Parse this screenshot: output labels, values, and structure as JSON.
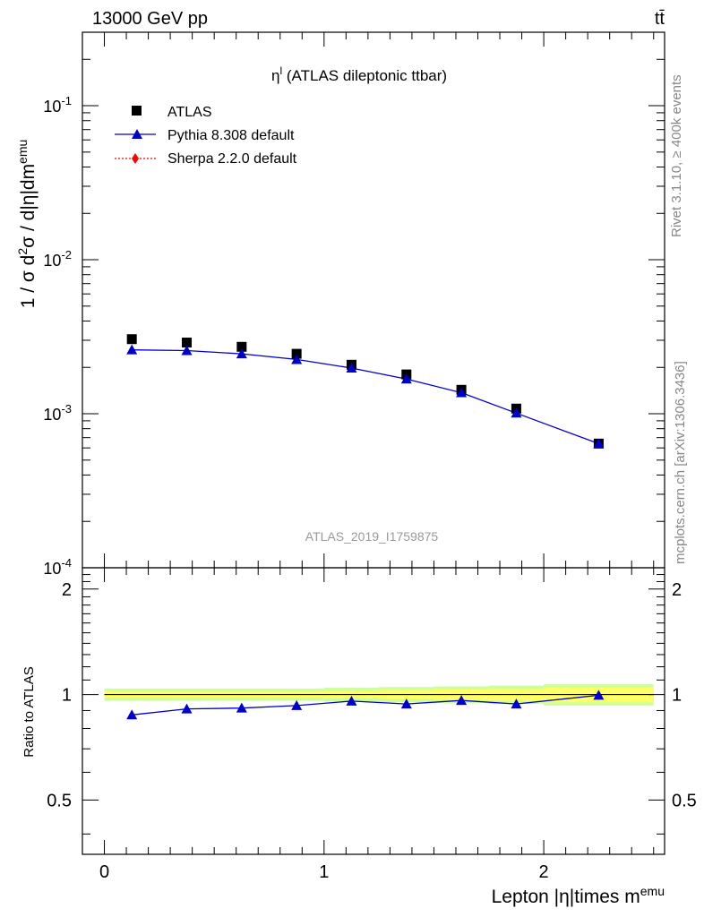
{
  "header": {
    "energy_label": "13000 GeV pp",
    "process_label": "tt̄"
  },
  "side_labels": {
    "rivet": "Rivet 3.1.10, ≥ 400k events",
    "mcplots": "mcplots.cern.ch [arXiv:1306.3436]"
  },
  "main_panel": {
    "title_prefix": "η",
    "title_sup": "l",
    "title_suffix": " (ATLAS dileptonic ttbar)",
    "watermark": "ATLAS_2019_I1759875",
    "ylabel": "1 / σ d²σ / d|η|dm^emu",
    "ytick_labels": [
      "10^-4",
      "10^-3",
      "10^-2",
      "10^-1"
    ]
  },
  "ratio_panel": {
    "ylabel": "Ratio to ATLAS",
    "ytick_labels": [
      "0.5",
      "1",
      "2"
    ],
    "xtick_labels": [
      "0",
      "1",
      "2"
    ],
    "xlabel": "Lepton |η|times m^emu"
  },
  "legend": {
    "position": "top-left",
    "entries": [
      {
        "label": "ATLAS",
        "marker": "square",
        "color": "#000000"
      },
      {
        "label": "Pythia 8.308 default",
        "marker": "triangle",
        "color": "#0000cc"
      },
      {
        "label": "Sherpa 2.2.0 default",
        "marker": "diamond",
        "color": "#ff0000"
      }
    ]
  },
  "colors": {
    "data": "#000000",
    "pythia": "#0000cc",
    "sherpa": "#ff0000",
    "band_inner": "#ffff66",
    "band_outer": "#ccff99",
    "watermark": "#999999",
    "side_text": "#888888"
  },
  "chart_data": [
    {
      "type": "scatter",
      "panel": "main",
      "x": [
        0.125,
        0.375,
        0.625,
        0.875,
        1.125,
        1.375,
        1.625,
        1.875,
        2.25
      ],
      "xlim": [
        -0.1,
        2.55
      ],
      "ylim": [
        0.0001,
        0.3
      ],
      "y_log_scale": true,
      "series": [
        {
          "name": "ATLAS",
          "values": [
            0.00305,
            0.0029,
            0.00272,
            0.00245,
            0.00208,
            0.0018,
            0.00143,
            0.00108,
            0.00064
          ]
        },
        {
          "name": "Pythia 8.308 default",
          "values": [
            0.0026,
            0.00257,
            0.00245,
            0.00225,
            0.00198,
            0.00168,
            0.00137,
            0.00101,
            0.00064
          ]
        }
      ]
    },
    {
      "type": "line",
      "panel": "ratio",
      "x": [
        0.125,
        0.375,
        0.625,
        0.875,
        1.125,
        1.375,
        1.625,
        1.875,
        2.25
      ],
      "xlim": [
        -0.1,
        2.55
      ],
      "ylim": [
        0.35,
        2.3
      ],
      "y_log_scale": true,
      "series": [
        {
          "name": "Pythia 8.308 default",
          "values": [
            0.875,
            0.91,
            0.915,
            0.93,
            0.958,
            0.94,
            0.962,
            0.94,
            0.995
          ]
        }
      ],
      "band_x_edges": [
        0.0,
        0.25,
        0.5,
        0.75,
        1.0,
        1.25,
        1.5,
        1.75,
        2.0,
        2.5
      ],
      "band_outer_halfwidth": [
        0.04,
        0.04,
        0.04,
        0.04,
        0.045,
        0.05,
        0.055,
        0.06,
        0.07
      ],
      "band_inner_halfwidth": [
        0.02,
        0.02,
        0.02,
        0.02,
        0.025,
        0.03,
        0.035,
        0.04,
        0.05
      ]
    }
  ]
}
